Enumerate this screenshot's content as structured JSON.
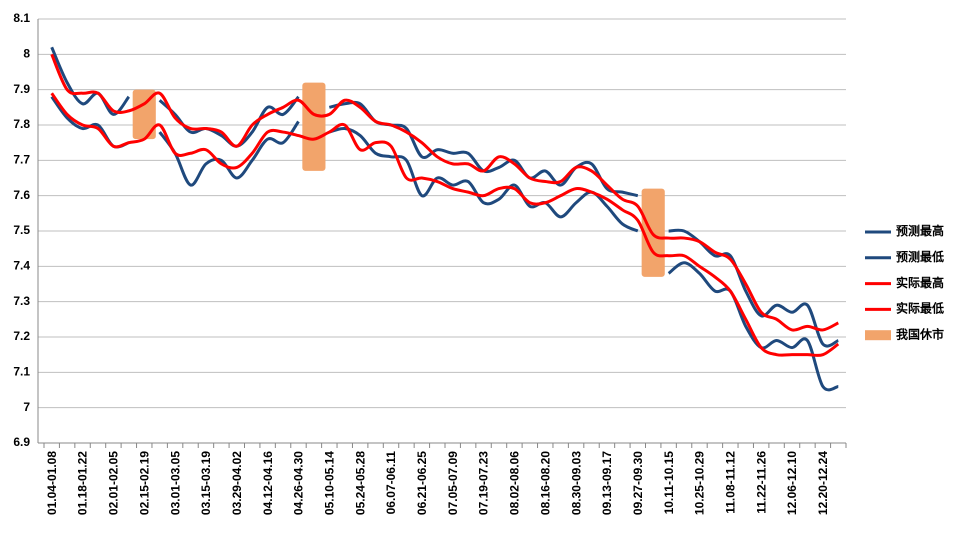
{
  "chart_data": {
    "type": "line",
    "categories": [
      "01.04-01.08",
      null,
      "01.18-01.22",
      null,
      "02.01-02.05",
      null,
      "02.15-02.19",
      null,
      "03.01-03.05",
      null,
      "03.15-03.19",
      null,
      "03.29-04.02",
      null,
      "04.12-04.16",
      null,
      "04.26-04.30",
      null,
      "05.10-05.14",
      null,
      "05.24-05.28",
      null,
      "06.07-06.11",
      null,
      "06.21-06.25",
      null,
      "07.05-07.09",
      null,
      "07.19-07.23",
      null,
      "08.02-08.06",
      null,
      "08.16-08.20",
      null,
      "08.30-09.03",
      null,
      "09.13-09.17",
      null,
      "09.27-09.30",
      null,
      "10.11-10.15",
      null,
      "10.25-10.29",
      null,
      "11.08-11.12",
      null,
      "11.22-11.26",
      null,
      "12.06-12.10",
      null,
      "12.20-12.24",
      null
    ],
    "series": [
      {
        "name": "预测最高",
        "color": "#1f497d",
        "values": [
          8.02,
          7.92,
          7.86,
          7.89,
          7.83,
          7.88,
          null,
          7.87,
          7.83,
          7.78,
          7.79,
          7.77,
          7.74,
          7.78,
          7.85,
          7.83,
          7.88,
          null,
          7.85,
          7.86,
          7.86,
          7.81,
          7.8,
          7.79,
          7.71,
          7.73,
          7.72,
          7.72,
          7.67,
          7.68,
          7.7,
          7.65,
          7.67,
          7.63,
          7.68,
          7.69,
          7.62,
          7.61,
          7.6,
          null,
          7.5,
          7.5,
          7.47,
          7.43,
          7.43,
          7.33,
          7.26,
          7.29,
          7.27,
          7.29,
          7.18,
          7.19
        ]
      },
      {
        "name": "预测最低",
        "color": "#1f497d",
        "values": [
          7.88,
          7.82,
          7.79,
          7.8,
          7.74,
          7.75,
          null,
          7.78,
          7.72,
          7.63,
          7.69,
          7.7,
          7.65,
          7.7,
          7.76,
          7.75,
          7.81,
          null,
          7.78,
          7.79,
          7.77,
          7.72,
          7.71,
          7.7,
          7.6,
          7.65,
          7.63,
          7.64,
          7.58,
          7.59,
          7.63,
          7.57,
          7.58,
          7.54,
          7.58,
          7.61,
          7.57,
          7.52,
          7.5,
          null,
          7.38,
          7.41,
          7.38,
          7.33,
          7.33,
          7.23,
          7.17,
          7.19,
          7.17,
          7.19,
          7.06,
          7.06
        ]
      },
      {
        "name": "实际最高",
        "color": "#ff0000",
        "values": [
          8.0,
          7.9,
          7.89,
          7.89,
          7.84,
          7.84,
          7.86,
          7.89,
          7.82,
          7.79,
          7.79,
          7.78,
          7.74,
          7.8,
          7.83,
          7.85,
          7.87,
          7.83,
          7.83,
          7.87,
          7.85,
          7.81,
          7.8,
          7.78,
          7.75,
          7.71,
          7.69,
          7.69,
          7.67,
          7.71,
          7.69,
          7.65,
          7.64,
          7.64,
          7.68,
          7.67,
          7.63,
          7.59,
          7.57,
          7.49,
          7.48,
          7.48,
          7.47,
          7.44,
          7.42,
          7.35,
          7.27,
          7.25,
          7.22,
          7.23,
          7.22,
          7.24
        ]
      },
      {
        "name": "实际最低",
        "color": "#ff0000",
        "values": [
          7.89,
          7.83,
          7.8,
          7.79,
          7.74,
          7.75,
          7.76,
          7.8,
          7.72,
          7.72,
          7.73,
          7.69,
          7.68,
          7.72,
          7.78,
          7.78,
          7.77,
          7.76,
          7.78,
          7.8,
          7.73,
          7.75,
          7.74,
          7.65,
          7.65,
          7.64,
          7.62,
          7.61,
          7.6,
          7.62,
          7.62,
          7.58,
          7.58,
          7.6,
          7.62,
          7.61,
          7.59,
          7.56,
          7.53,
          7.44,
          7.43,
          7.43,
          7.4,
          7.37,
          7.33,
          7.25,
          7.17,
          7.15,
          7.15,
          7.15,
          7.15,
          7.18
        ]
      }
    ],
    "band": {
      "name": "我国休市",
      "color": "#f2a46b",
      "low": [
        null,
        null,
        null,
        null,
        null,
        null,
        7.76,
        null,
        null,
        null,
        null,
        null,
        null,
        null,
        null,
        null,
        null,
        7.67,
        null,
        null,
        null,
        null,
        null,
        null,
        null,
        null,
        null,
        null,
        null,
        null,
        null,
        null,
        null,
        null,
        null,
        null,
        null,
        null,
        null,
        7.37,
        null,
        null,
        null,
        null,
        null,
        null,
        null,
        null,
        null,
        null,
        null,
        null
      ],
      "high": [
        null,
        null,
        null,
        null,
        null,
        null,
        7.9,
        null,
        null,
        null,
        null,
        null,
        null,
        null,
        null,
        null,
        null,
        7.92,
        null,
        null,
        null,
        null,
        null,
        null,
        null,
        null,
        null,
        null,
        null,
        null,
        null,
        null,
        null,
        null,
        null,
        null,
        null,
        null,
        null,
        7.62,
        null,
        null,
        null,
        null,
        null,
        null,
        null,
        null,
        null,
        null,
        null,
        null
      ]
    },
    "ylim": [
      6.9,
      8.1
    ],
    "yticks": [
      6.9,
      7,
      7.1,
      7.2,
      7.3,
      7.4,
      7.5,
      7.6,
      7.7,
      7.8,
      7.9,
      8,
      8.1
    ],
    "grid": true,
    "legend": "right"
  }
}
